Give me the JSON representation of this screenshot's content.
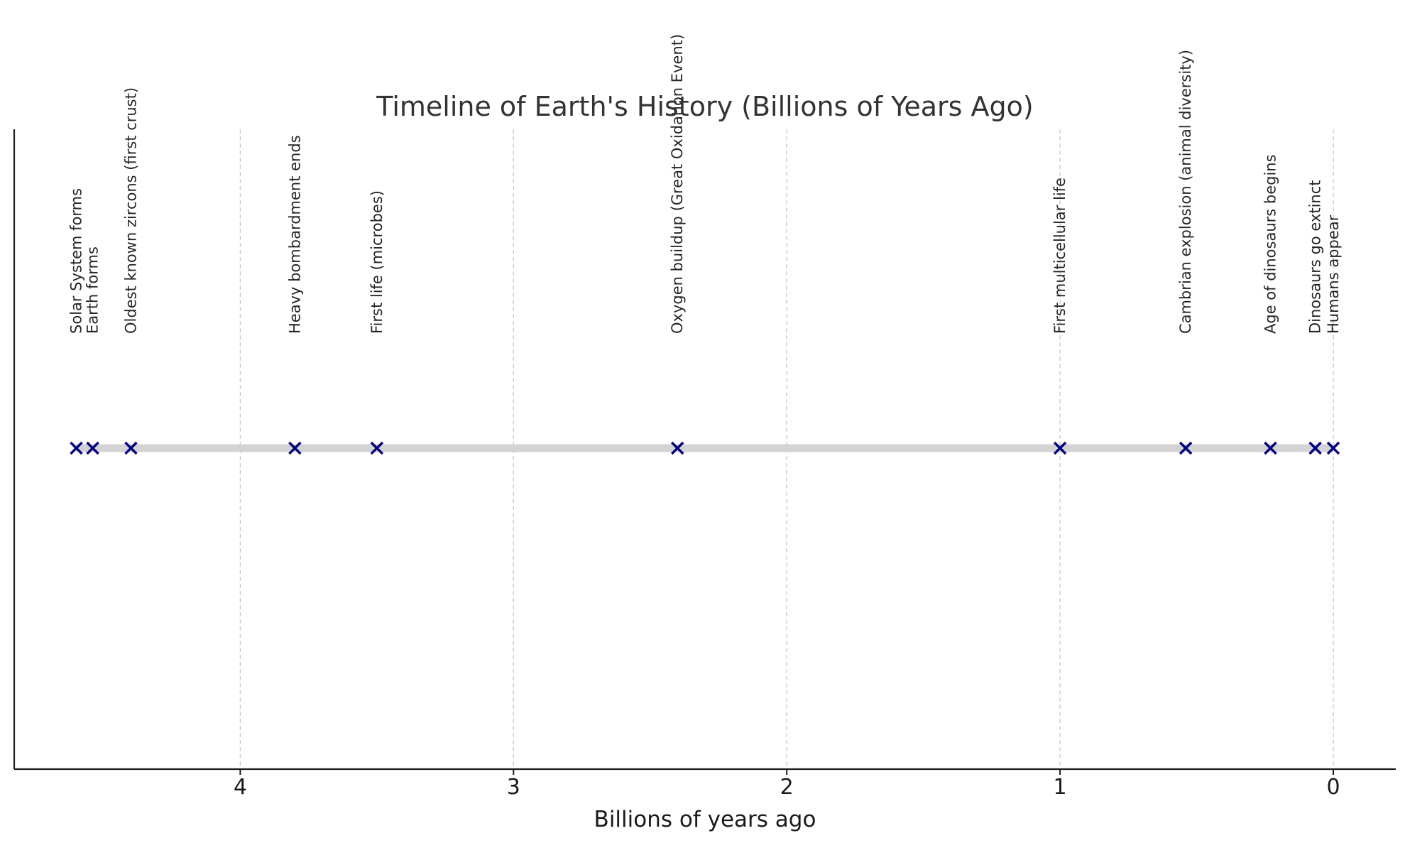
{
  "chart_data": {
    "type": "scatter",
    "title": "Timeline of Earth's History (Billions of Years Ago)",
    "xlabel": "Billions of years ago",
    "ylabel": "",
    "xlim": [
      4.84,
      -0.23
    ],
    "x_inverted": true,
    "x_ticks": [
      4,
      3,
      2,
      1,
      0
    ],
    "x_tick_labels": [
      "4",
      "3",
      "2",
      "1",
      "0"
    ],
    "grid": "vertical dashed at ticks",
    "colors": {
      "marker": "#000080",
      "timeline_bar": "#d3d3d3",
      "grid": "#c8c8c8",
      "axis": "#1a1a1a"
    },
    "marker": "x",
    "events": [
      {
        "x": 4.6,
        "label": "Solar System forms"
      },
      {
        "x": 4.54,
        "label": "Earth forms"
      },
      {
        "x": 4.4,
        "label": "Oldest known zircons (first crust)"
      },
      {
        "x": 3.8,
        "label": "Heavy bombardment ends"
      },
      {
        "x": 3.5,
        "label": "First life (microbes)"
      },
      {
        "x": 2.4,
        "label": "Oxygen buildup (Great Oxidation Event)"
      },
      {
        "x": 1.0,
        "label": "First multicellular life"
      },
      {
        "x": 0.54,
        "label": "Cambrian explosion (animal diversity)"
      },
      {
        "x": 0.23,
        "label": "Age of dinosaurs begins"
      },
      {
        "x": 0.066,
        "label": "Dinosaurs go extinct"
      },
      {
        "x": 0.0,
        "label": "Humans appear"
      }
    ]
  }
}
